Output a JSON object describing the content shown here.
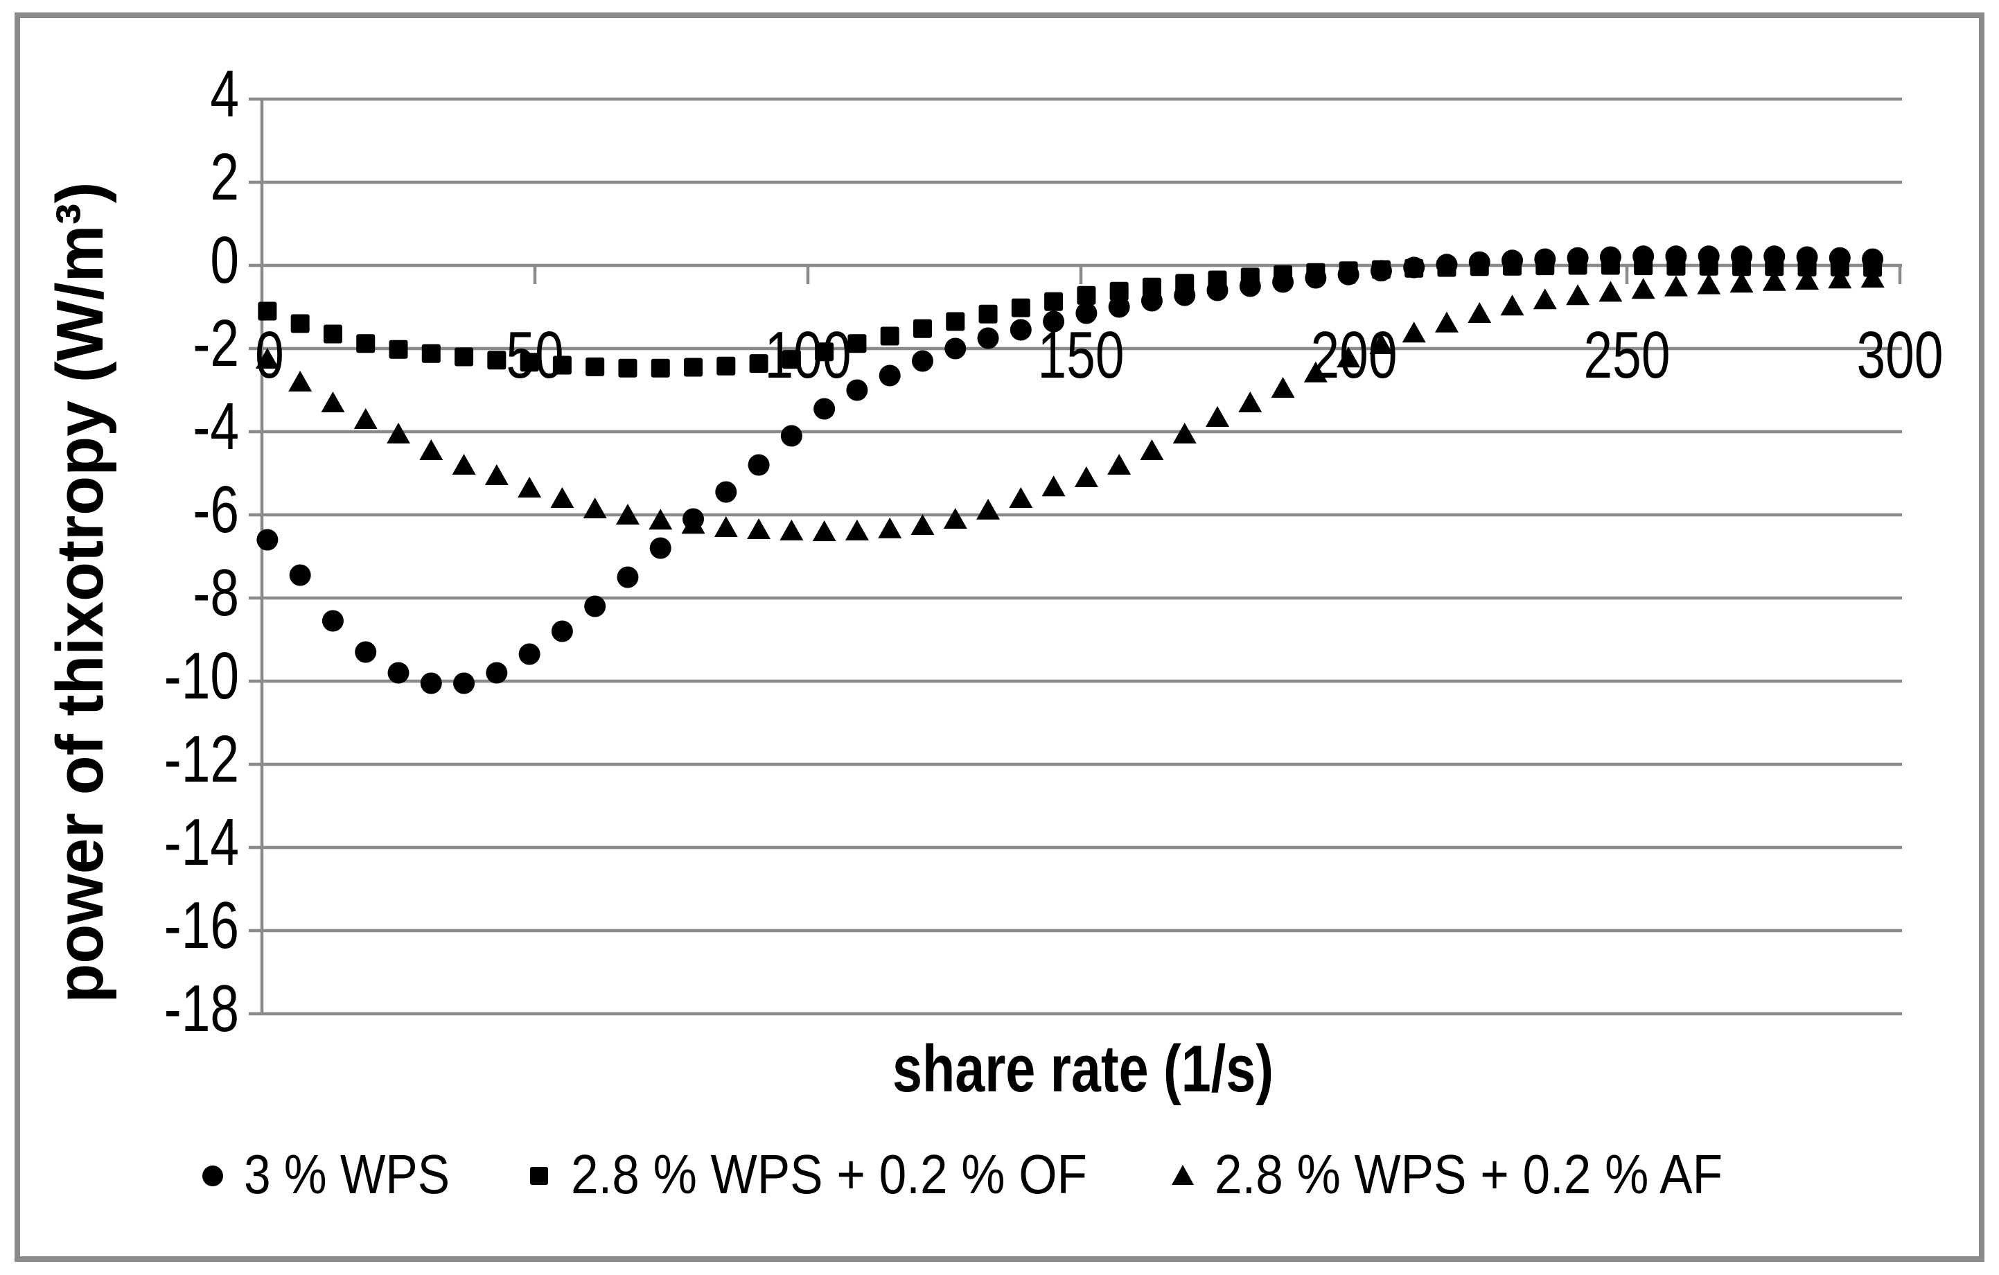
{
  "figure": {
    "colors": {
      "background": "#ffffff",
      "border": "#8a8a8a",
      "grid": "#8a8a8a",
      "axis": "#8a8a8a",
      "marker": "#000000",
      "text": "#000000"
    }
  },
  "chart_data": {
    "type": "scatter",
    "title": "",
    "xlabel": "share rate (1/s)",
    "ylabel": "power of thixotropy  (W/m³)",
    "xlim": [
      0,
      300
    ],
    "ylim": [
      -18,
      4
    ],
    "xticks": [
      0,
      50,
      100,
      150,
      200,
      250,
      300
    ],
    "yticks": [
      4,
      2,
      0,
      -2,
      -4,
      -6,
      -8,
      -10,
      -12,
      -14,
      -16,
      -18
    ],
    "grid": "horizontal-only",
    "legend_position": "bottom",
    "x": [
      1,
      7,
      13,
      19,
      25,
      31,
      37,
      43,
      49,
      55,
      61,
      67,
      73,
      79,
      85,
      91,
      97,
      103,
      109,
      115,
      121,
      127,
      133,
      139,
      145,
      151,
      157,
      163,
      169,
      175,
      181,
      187,
      193,
      199,
      205,
      211,
      217,
      223,
      229,
      235,
      241,
      247,
      253,
      259,
      265,
      271,
      277,
      283,
      289,
      295
    ],
    "series": [
      {
        "name": "3 % WPS",
        "marker": "circle",
        "color": "#000000",
        "values": [
          -6.6,
          -7.45,
          -8.55,
          -9.3,
          -9.8,
          -10.05,
          -10.05,
          -9.8,
          -9.35,
          -8.8,
          -8.2,
          -7.5,
          -6.8,
          -6.1,
          -5.45,
          -4.8,
          -4.1,
          -3.45,
          -3.0,
          -2.65,
          -2.3,
          -2.0,
          -1.75,
          -1.55,
          -1.35,
          -1.15,
          -1.0,
          -0.85,
          -0.72,
          -0.6,
          -0.5,
          -0.4,
          -0.3,
          -0.22,
          -0.13,
          -0.05,
          0.02,
          0.08,
          0.12,
          0.15,
          0.18,
          0.2,
          0.22,
          0.22,
          0.22,
          0.22,
          0.22,
          0.2,
          0.18,
          0.15
        ]
      },
      {
        "name": "2.8 % WPS + 0.2 % OF",
        "marker": "square",
        "color": "#000000",
        "values": [
          -1.1,
          -1.4,
          -1.65,
          -1.88,
          -2.02,
          -2.12,
          -2.2,
          -2.28,
          -2.33,
          -2.4,
          -2.44,
          -2.47,
          -2.47,
          -2.45,
          -2.42,
          -2.36,
          -2.26,
          -2.08,
          -1.88,
          -1.7,
          -1.52,
          -1.35,
          -1.17,
          -1.02,
          -0.87,
          -0.72,
          -0.62,
          -0.52,
          -0.43,
          -0.35,
          -0.28,
          -0.22,
          -0.17,
          -0.13,
          -0.1,
          -0.07,
          -0.05,
          -0.03,
          -0.02,
          -0.01,
          0,
          0,
          -0.01,
          -0.02,
          -0.02,
          -0.03,
          -0.03,
          -0.04,
          -0.04,
          -0.05
        ]
      },
      {
        "name": "2.8 % WPS + 0.2 % AF",
        "marker": "triangle",
        "color": "#000000",
        "values": [
          -2.25,
          -2.8,
          -3.3,
          -3.7,
          -4.05,
          -4.45,
          -4.8,
          -5.05,
          -5.35,
          -5.6,
          -5.85,
          -6.0,
          -6.12,
          -6.22,
          -6.3,
          -6.35,
          -6.38,
          -6.4,
          -6.38,
          -6.33,
          -6.25,
          -6.1,
          -5.88,
          -5.6,
          -5.32,
          -5.1,
          -4.8,
          -4.45,
          -4.05,
          -3.65,
          -3.3,
          -2.95,
          -2.58,
          -2.22,
          -1.9,
          -1.62,
          -1.38,
          -1.15,
          -0.97,
          -0.82,
          -0.72,
          -0.64,
          -0.57,
          -0.51,
          -0.46,
          -0.42,
          -0.38,
          -0.35,
          -0.32,
          -0.3
        ]
      }
    ]
  }
}
